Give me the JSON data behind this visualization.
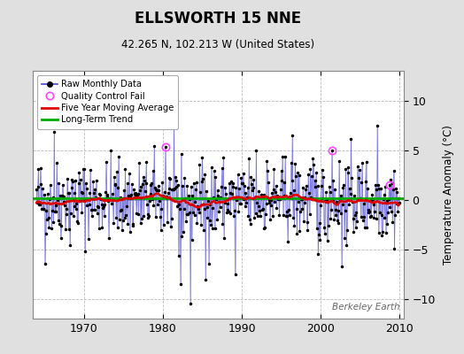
{
  "title": "ELLSWORTH 15 NNE",
  "subtitle": "42.265 N, 102.213 W (United States)",
  "ylabel": "Temperature Anomaly (°C)",
  "watermark": "Berkeley Earth",
  "xlim": [
    1963.5,
    2010.5
  ],
  "ylim": [
    -12,
    13
  ],
  "yticks": [
    -10,
    -5,
    0,
    5,
    10
  ],
  "xticks": [
    1970,
    1980,
    1990,
    2000,
    2010
  ],
  "bg_color": "#e0e0e0",
  "plot_bg_color": "#ffffff",
  "grid_color": "#bbbbbb",
  "line_color": "#4444cc",
  "dot_color": "#000000",
  "ma_color": "#dd0000",
  "trend_color": "#00aa00",
  "qc_color": "#ff44ff",
  "start_year": 1964,
  "end_year": 2009,
  "seed": 42,
  "long_term_trend_y": 0.1,
  "ma_window": 60,
  "noise_std": 2.0,
  "spike_std": 3.5,
  "n_spikes": 25
}
